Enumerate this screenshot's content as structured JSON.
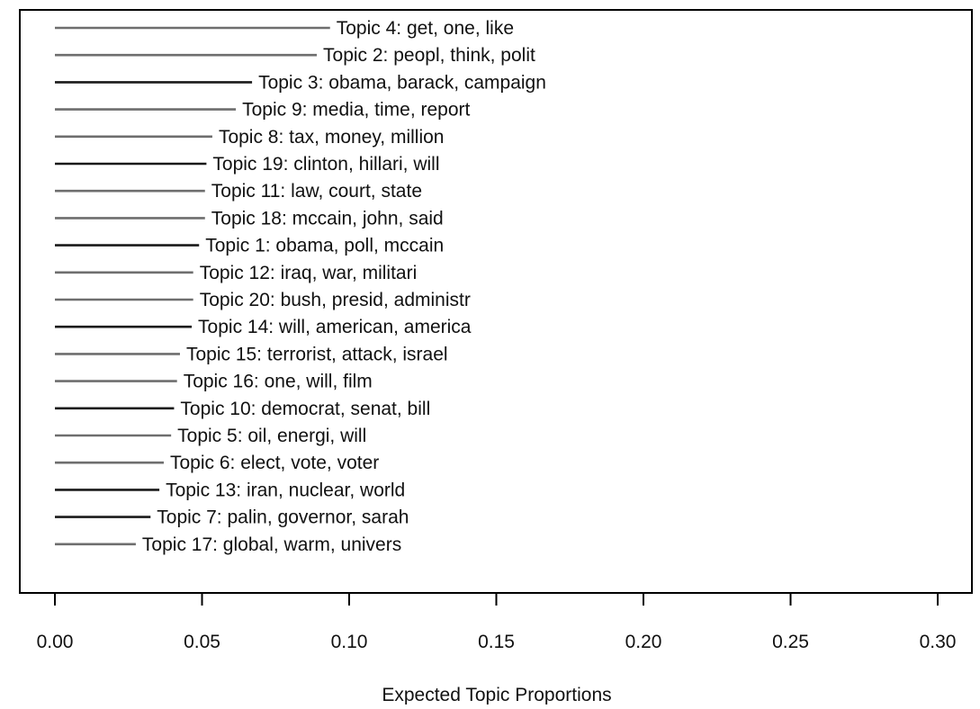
{
  "chart_data": {
    "type": "bar",
    "orientation": "horizontal",
    "title": "",
    "xlabel": "Expected Topic Proportions",
    "ylabel": "",
    "xlim": [
      0,
      0.3
    ],
    "x_ticks": [
      0.0,
      0.05,
      0.1,
      0.15,
      0.2,
      0.25,
      0.3
    ],
    "x_tick_labels": [
      "0.00",
      "0.05",
      "0.10",
      "0.15",
      "0.20",
      "0.25",
      "0.30"
    ],
    "grid": false,
    "legend": "none",
    "colors": {
      "bar_dark": "#1a1a1a",
      "bar_gray": "#6e6e6e",
      "frame": "#000000",
      "text": "#111111"
    },
    "series": [
      {
        "labels": [
          "Topic 4: get, one, like",
          "Topic 2: peopl, think, polit",
          "Topic 3: obama, barack, campaign",
          "Topic 9: media, time, report",
          "Topic 8: tax, money, million",
          "Topic 19: clinton, hillari, will",
          "Topic 11: law, court, state",
          "Topic 18: mccain, john, said",
          "Topic 1: obama, poll, mccain",
          "Topic 12: iraq, war, militari",
          "Topic 20: bush, presid, administr",
          "Topic 14: will, american, america",
          "Topic 15: terrorist, attack, israel",
          "Topic 16: one, will, film",
          "Topic 10: democrat, senat, bill",
          "Topic 5: oil, energi, will",
          "Topic 6: elect, vote, voter",
          "Topic 13: iran, nuclear, world",
          "Topic 7: palin, governor, sarah",
          "Topic 17: global, warm, univers"
        ],
        "values": [
          0.0935,
          0.089,
          0.067,
          0.0615,
          0.0535,
          0.0515,
          0.051,
          0.051,
          0.049,
          0.047,
          0.047,
          0.0465,
          0.0425,
          0.0415,
          0.0405,
          0.0395,
          0.037,
          0.0355,
          0.0325,
          0.0275
        ],
        "line_tones": [
          "gray",
          "gray",
          "dark",
          "gray",
          "gray",
          "dark",
          "gray",
          "gray",
          "dark",
          "gray",
          "gray",
          "dark",
          "gray",
          "gray",
          "dark",
          "gray",
          "gray",
          "dark",
          "dark",
          "gray"
        ]
      }
    ]
  }
}
